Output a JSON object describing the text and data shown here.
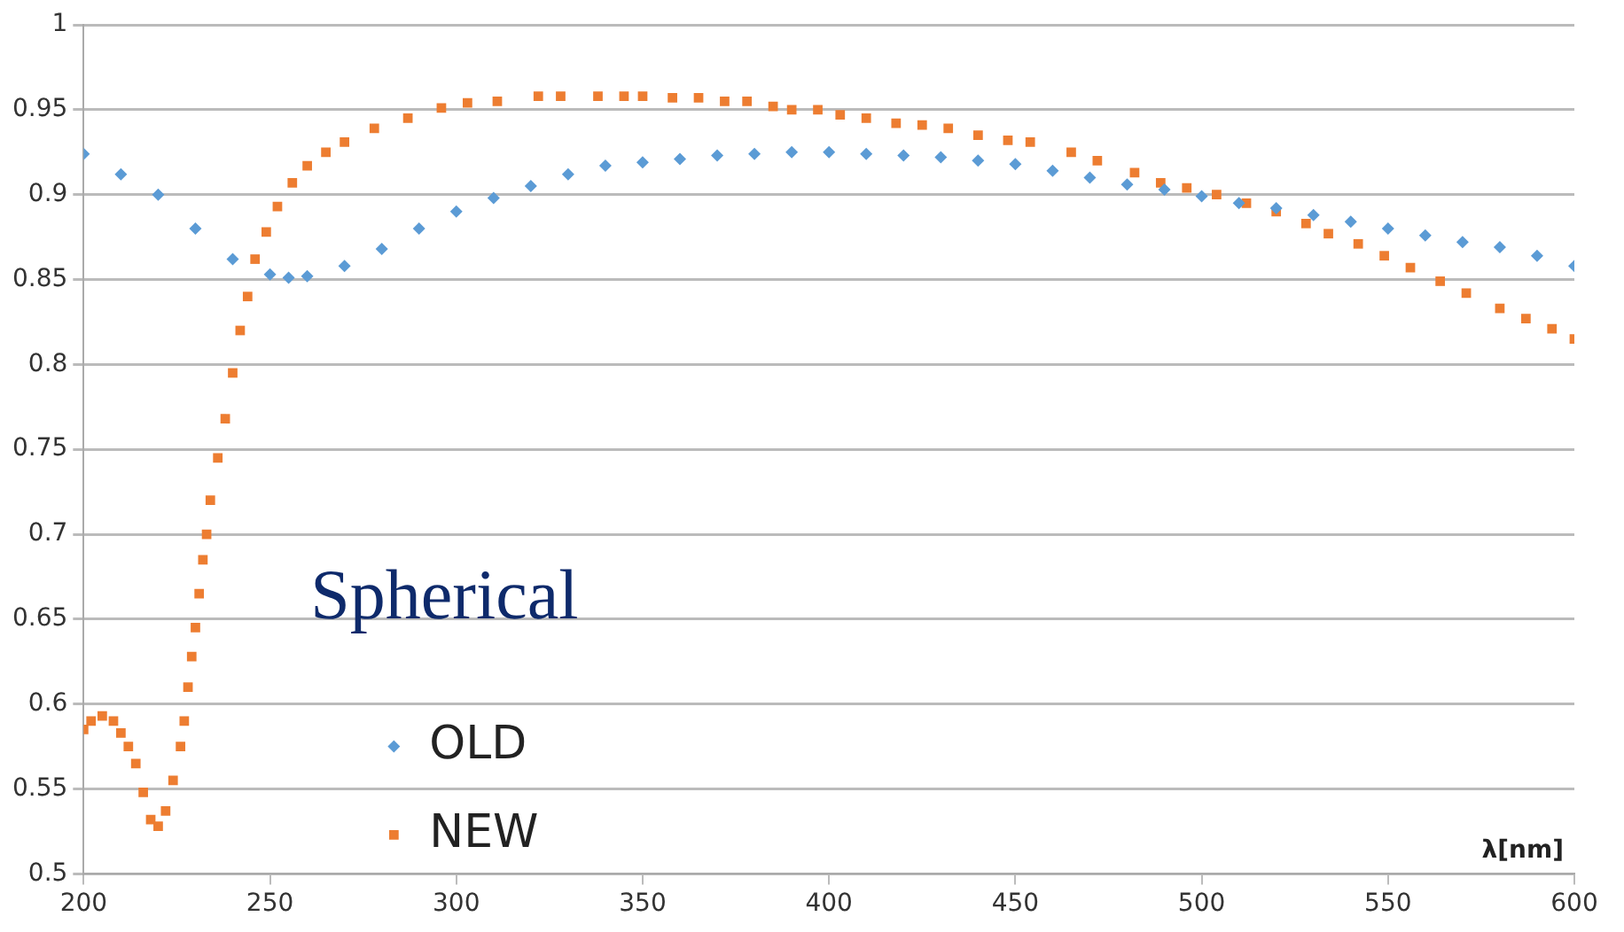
{
  "chart_data": {
    "type": "scatter",
    "xlabel": "λ[nm]",
    "annotations": [
      "Spherical"
    ],
    "xlim": [
      200,
      600
    ],
    "xticks": [
      200,
      250,
      300,
      350,
      400,
      450,
      500,
      550,
      600
    ],
    "ylim": [
      0.5,
      1
    ],
    "yticks": [
      0.5,
      0.55,
      0.6,
      0.65,
      0.7,
      0.75,
      0.8,
      0.85,
      0.9,
      0.95,
      1
    ],
    "grid": "y",
    "legend": "bottom left",
    "series": [
      {
        "name": "OLD",
        "color": "#5b9bd5",
        "marker": "diamond",
        "x": [
          200,
          210,
          220,
          230,
          240,
          250,
          255,
          260,
          270,
          280,
          290,
          300,
          310,
          320,
          330,
          340,
          350,
          360,
          370,
          380,
          390,
          400,
          410,
          420,
          430,
          440,
          450,
          460,
          470,
          480,
          490,
          500,
          510,
          520,
          530,
          540,
          550,
          560,
          570,
          580,
          590,
          600
        ],
        "values": [
          0.924,
          0.912,
          0.9,
          0.88,
          0.862,
          0.853,
          0.851,
          0.852,
          0.858,
          0.868,
          0.88,
          0.89,
          0.898,
          0.905,
          0.912,
          0.917,
          0.919,
          0.921,
          0.923,
          0.924,
          0.925,
          0.925,
          0.924,
          0.923,
          0.922,
          0.92,
          0.918,
          0.914,
          0.91,
          0.906,
          0.903,
          0.899,
          0.895,
          0.892,
          0.888,
          0.884,
          0.88,
          0.876,
          0.872,
          0.869,
          0.864,
          0.858
        ]
      },
      {
        "name": "NEW",
        "color": "#ed7d31",
        "marker": "square",
        "x": [
          200,
          202,
          205,
          208,
          210,
          212,
          214,
          216,
          218,
          220,
          222,
          224,
          226,
          227,
          228,
          229,
          230,
          231,
          232,
          233,
          234,
          236,
          238,
          240,
          242,
          244,
          246,
          249,
          252,
          256,
          260,
          265,
          270,
          278,
          287,
          296,
          303,
          311,
          322,
          328,
          338,
          345,
          350,
          358,
          365,
          372,
          378,
          385,
          390,
          397,
          403,
          410,
          418,
          425,
          432,
          440,
          448,
          454,
          465,
          472,
          482,
          489,
          496,
          504,
          512,
          520,
          528,
          534,
          542,
          549,
          556,
          564,
          571,
          580,
          587,
          594,
          600
        ],
        "values": [
          0.585,
          0.59,
          0.593,
          0.59,
          0.583,
          0.575,
          0.565,
          0.548,
          0.532,
          0.528,
          0.537,
          0.555,
          0.575,
          0.59,
          0.61,
          0.628,
          0.645,
          0.665,
          0.685,
          0.7,
          0.72,
          0.745,
          0.768,
          0.795,
          0.82,
          0.84,
          0.862,
          0.878,
          0.893,
          0.907,
          0.917,
          0.925,
          0.931,
          0.939,
          0.945,
          0.951,
          0.954,
          0.955,
          0.958,
          0.958,
          0.958,
          0.958,
          0.958,
          0.957,
          0.957,
          0.955,
          0.955,
          0.952,
          0.95,
          0.95,
          0.947,
          0.945,
          0.942,
          0.941,
          0.939,
          0.935,
          0.932,
          0.931,
          0.925,
          0.92,
          0.913,
          0.907,
          0.904,
          0.9,
          0.895,
          0.89,
          0.883,
          0.877,
          0.871,
          0.864,
          0.857,
          0.849,
          0.842,
          0.833,
          0.827,
          0.821,
          0.815
        ]
      }
    ]
  }
}
